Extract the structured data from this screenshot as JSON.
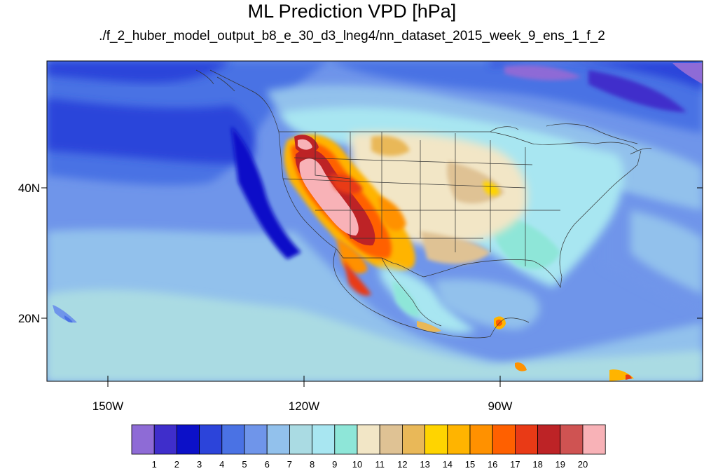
{
  "title": "ML Prediction VPD [hPa]",
  "subtitle": "./f_2_huber_model_output_b8_e_30_d3_lneg4/nn_dataset_2015_week_9_ens_1_f_2",
  "map": {
    "lat_labels": [
      "40N",
      "20N"
    ],
    "lon_labels": [
      "150W",
      "120W",
      "90W"
    ]
  },
  "colorbar": {
    "colors": [
      "#8e6bd6",
      "#3f2ecb",
      "#0c10c8",
      "#2c44da",
      "#4a72e4",
      "#6f95ea",
      "#92c1ec",
      "#aadbe3",
      "#a8e6f1",
      "#8ee6d8",
      "#f2e6c6",
      "#dfc294",
      "#e9b858",
      "#ffd400",
      "#ffb400",
      "#ff9100",
      "#ff6000",
      "#e93a16",
      "#bd2326",
      "#cf5352",
      "#f8b2b7"
    ],
    "labels": [
      "1",
      "2",
      "3",
      "4",
      "5",
      "6",
      "7",
      "8",
      "9",
      "10",
      "11",
      "12",
      "13",
      "14",
      "15",
      "16",
      "17",
      "18",
      "19",
      "20"
    ]
  }
}
